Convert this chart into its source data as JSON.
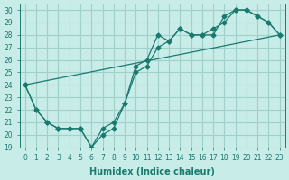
{
  "xlabel": "Humidex (Indice chaleur)",
  "ylabel": "",
  "background_color": "#c8ece8",
  "grid_color": "#a0d0cc",
  "line_color": "#1a7a6e",
  "xlim": [
    -0.5,
    23.5
  ],
  "ylim": [
    19,
    30.5
  ],
  "yticks": [
    19,
    20,
    21,
    22,
    23,
    24,
    25,
    26,
    27,
    28,
    29,
    30
  ],
  "xticks": [
    0,
    1,
    2,
    3,
    4,
    5,
    6,
    7,
    8,
    9,
    10,
    11,
    12,
    13,
    14,
    15,
    16,
    17,
    18,
    19,
    20,
    21,
    22,
    23
  ],
  "line1_x": [
    0,
    1,
    2,
    3,
    4,
    5,
    6,
    7,
    8,
    9,
    10,
    11,
    12,
    13,
    14,
    15,
    16,
    17,
    18,
    19,
    20,
    21,
    22,
    23
  ],
  "line1_y": [
    24.0,
    22.0,
    21.0,
    20.5,
    20.5,
    20.5,
    19.0,
    20.0,
    20.5,
    22.5,
    25.5,
    26.0,
    28.0,
    27.5,
    28.5,
    28.0,
    28.0,
    28.0,
    29.5,
    30.0,
    30.0,
    29.5,
    29.0,
    28.0
  ],
  "line2_x": [
    0,
    1,
    2,
    3,
    4,
    5,
    6,
    7,
    8,
    9,
    10,
    11,
    12,
    13,
    14,
    15,
    16,
    17,
    18,
    19,
    20,
    21,
    22,
    23
  ],
  "line2_y": [
    24.0,
    22.0,
    21.0,
    20.5,
    20.5,
    20.5,
    19.0,
    20.5,
    21.0,
    22.5,
    25.0,
    25.5,
    27.0,
    27.5,
    28.5,
    28.0,
    28.0,
    28.5,
    29.0,
    30.0,
    30.0,
    29.5,
    29.0,
    28.0
  ],
  "line3_x": [
    0,
    23
  ],
  "line3_y": [
    24.0,
    28.0
  ],
  "title_fontsize": 7,
  "axis_fontsize": 7,
  "tick_fontsize": 5.5
}
